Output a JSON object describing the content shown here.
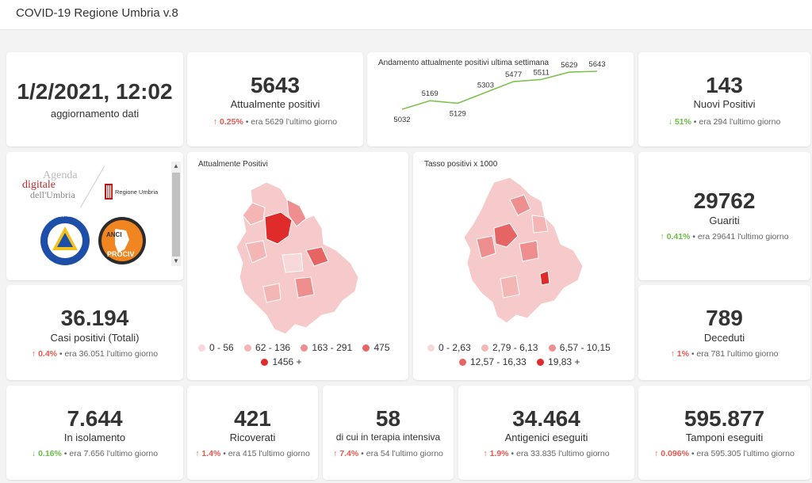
{
  "app": {
    "title": "COVID-19 Regione Umbria v.8"
  },
  "update": {
    "value": "1/2/2021, 12:02",
    "label": "aggiornamento dati"
  },
  "attualmente": {
    "value": "5643",
    "label": "Attualmente positivi",
    "arrow": "↑",
    "pct": "0.25%",
    "prev": "• era 5629 l'ultimo giorno"
  },
  "trend": {
    "title": "Andamento attualmente positivi ultima settimana",
    "color": "#7cc24f",
    "values": [
      5032,
      5169,
      5129,
      5303,
      5477,
      5511,
      5629,
      5643
    ],
    "labels": [
      "5032",
      "5169",
      "5129",
      "5303",
      "5477",
      "5511",
      "5629",
      "5643"
    ]
  },
  "nuovi": {
    "value": "143",
    "label": "Nuovi Positivi",
    "arrow": "↓",
    "pct": "51%",
    "prev": "• era 294 l'ultimo giorno"
  },
  "logos": {
    "agenda1": "Agenda",
    "agenda2": "digitale",
    "agenda3": "dell'Umbria",
    "regione": "Regione Umbria",
    "protezione": "Protezione Civile",
    "anci_top": "ANCI",
    "anci_bottom": "PROCIV"
  },
  "map1": {
    "title": "Attualmente Positivi",
    "legend": [
      {
        "label": "0 - 56",
        "color": "#f8d9d9"
      },
      {
        "label": "62 - 136",
        "color": "#f4b5b5"
      },
      {
        "label": "163 - 291",
        "color": "#ee8e8e"
      },
      {
        "label": "475",
        "color": "#e76464"
      },
      {
        "label": "1456 +",
        "color": "#e02b2b"
      }
    ]
  },
  "map2": {
    "title": "Tasso positivi x 1000",
    "legend": [
      {
        "label": "0 - 2,63",
        "color": "#f8d9d9"
      },
      {
        "label": "2,79 - 6,13",
        "color": "#f4b5b5"
      },
      {
        "label": "6,57 - 10,15",
        "color": "#ee8e8e"
      },
      {
        "label": "12,57 - 16,33",
        "color": "#e76464"
      },
      {
        "label": "19,83 +",
        "color": "#e02b2b"
      }
    ]
  },
  "guariti": {
    "value": "29762",
    "label": "Guariti",
    "arrow": "↑",
    "pct": "0.41%",
    "prev": "• era 29641 l'ultimo giorno"
  },
  "casi": {
    "value": "36.194",
    "label": "Casi positivi (Totali)",
    "arrow": "↑",
    "pct": "0.4%",
    "prev": "• era 36.051 l'ultimo giorno"
  },
  "deceduti": {
    "value": "789",
    "label": "Deceduti",
    "arrow": "↑",
    "pct": "1%",
    "prev": "• era 781 l'ultimo giorno"
  },
  "isolamento": {
    "value": "7.644",
    "label": "In isolamento",
    "arrow": "↓",
    "pct": "0.16%",
    "prev": "• era 7.656 l'ultimo giorno"
  },
  "ricoverati": {
    "value": "421",
    "label": "Ricoverati",
    "arrow": "↑",
    "pct": "1.4%",
    "prev": "• era 415 l'ultimo giorno"
  },
  "intensiva": {
    "value": "58",
    "label": "di cui in terapia intensiva",
    "arrow": "↑",
    "pct": "7.4%",
    "prev": "• era 54 l'ultimo giorno"
  },
  "antigenici": {
    "value": "34.464",
    "label": "Antigenici eseguiti",
    "arrow": "↑",
    "pct": "1.9%",
    "prev": "• era 33.835 l'ultimo giorno"
  },
  "tamponi": {
    "value": "595.877",
    "label": "Tamponi eseguiti",
    "arrow": "↑",
    "pct": "0.096%",
    "prev": "• era 595.305 l'ultimo giorno"
  }
}
